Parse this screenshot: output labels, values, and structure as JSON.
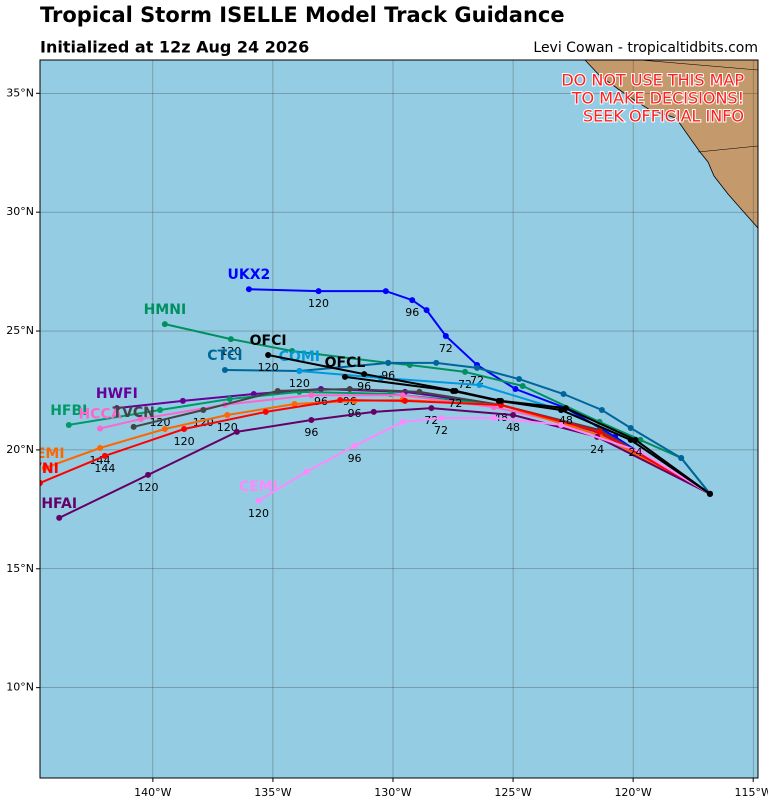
{
  "chart_data": {
    "type": "track-map",
    "title": "Tropical Storm ISELLE Model Track Guidance",
    "subtitle": "Initialized at 12z Aug 24 2026",
    "credit": "Levi Cowan - tropicaltidbits.com",
    "warning": [
      "DO NOT USE THIS MAP",
      "TO MAKE DECISIONS!",
      "SEEK OFFICIAL INFO"
    ],
    "xlim": [
      -144.7,
      -114.8
    ],
    "ylim": [
      6.2,
      36.4
    ],
    "xticks": [
      {
        "value": -140,
        "label": "140°W"
      },
      {
        "value": -135,
        "label": "135°W"
      },
      {
        "value": -130,
        "label": "130°W"
      },
      {
        "value": -125,
        "label": "125°W"
      },
      {
        "value": -120,
        "label": "120°W"
      },
      {
        "value": -115,
        "label": "115°W"
      }
    ],
    "yticks": [
      {
        "value": 10,
        "label": "10°N"
      },
      {
        "value": 15,
        "label": "15°N"
      },
      {
        "value": 20,
        "label": "20°N"
      },
      {
        "value": 25,
        "label": "25°N"
      },
      {
        "value": 30,
        "label": "30°N"
      },
      {
        "value": 35,
        "label": "35°N"
      }
    ],
    "grid": true,
    "ocean_color": "#94cde3",
    "land_color": "#c49a6c",
    "series": [
      {
        "name": "UKX2",
        "color": "#0000ff",
        "lon": [
          -116.8,
          -118.9,
          -120.75,
          -122.8,
          -124.9,
          -126.5,
          -127.8,
          -128.6,
          -129.2,
          -130.3,
          -133.1,
          -136.0
        ],
        "lat": [
          18.15,
          19.33,
          20.55,
          21.76,
          22.56,
          23.57,
          24.79,
          25.88,
          26.3,
          26.68,
          26.68,
          26.76
        ],
        "hour_labels": [
          null,
          null,
          null,
          null,
          null,
          null,
          72,
          null,
          96,
          null,
          120,
          null
        ]
      },
      {
        "name": "HMNI",
        "color": "#009060",
        "lon": [
          -116.8,
          -118.0,
          -119.7,
          -121.4,
          -124.6,
          -127.0,
          -129.3,
          -130.2,
          -134.2,
          -136.75,
          -139.5
        ],
        "lat": [
          18.15,
          19.66,
          20.42,
          21.18,
          22.69,
          23.28,
          23.57,
          23.66,
          24.16,
          24.66,
          25.29
        ],
        "hour_labels": [
          null,
          null,
          null,
          null,
          null,
          72,
          null,
          null,
          null,
          120,
          null
        ]
      },
      {
        "name": "CTCI",
        "color": "#006699",
        "lon": [
          -116.8,
          -118.0,
          -120.1,
          -121.3,
          -122.9,
          -124.75,
          -126.5,
          -128.2,
          -130.2,
          -133.9,
          -137.0
        ],
        "lat": [
          18.15,
          19.66,
          20.92,
          21.68,
          22.35,
          22.98,
          23.45,
          23.66,
          23.66,
          23.32,
          23.36
        ],
        "hour_labels": [
          null,
          null,
          null,
          null,
          null,
          null,
          72,
          null,
          96,
          120,
          null
        ]
      },
      {
        "name": "COMI",
        "color": "#0099dd",
        "lon": [
          -116.8,
          -120.1,
          -123.0,
          -126.4,
          -130.5,
          -133.9
        ],
        "lat": [
          18.15,
          20.42,
          21.68,
          22.73,
          23.03,
          23.32
        ],
        "hour_labels": [
          null,
          null,
          null,
          null,
          null,
          null
        ]
      },
      {
        "name": "HWFI",
        "color": "#660099",
        "lon": [
          -116.8,
          -121.5,
          -125.5,
          -129.5,
          -133.0,
          -135.8,
          -138.75,
          -141.5
        ],
        "lat": [
          18.15,
          20.76,
          21.89,
          22.44,
          22.56,
          22.35,
          22.06,
          21.76
        ],
        "hour_labels": [
          null,
          null,
          null,
          null,
          96,
          null,
          null,
          null
        ]
      },
      {
        "name": "HFBI",
        "color": "#009966",
        "lon": [
          -116.8,
          -121.4,
          -125.5,
          -130.1,
          -133.9,
          -136.8,
          -139.7,
          -143.5
        ],
        "lat": [
          18.15,
          20.63,
          21.89,
          22.35,
          22.44,
          22.14,
          21.68,
          21.05
        ],
        "hour_labels": [
          null,
          null,
          null,
          null,
          null,
          null,
          120,
          null
        ]
      },
      {
        "name": "HCCA",
        "color": "#ff66cc",
        "lon": [
          -116.8,
          -121.4,
          -125.8,
          -129.6,
          -133.4,
          -137.0,
          -140.5,
          -142.2
        ],
        "lat": [
          18.15,
          20.8,
          21.8,
          22.3,
          22.3,
          21.9,
          21.3,
          20.9
        ],
        "hour_labels": [
          null,
          null,
          null,
          null,
          null,
          null,
          null,
          null
        ]
      },
      {
        "name": "TVCN",
        "color": "#444444",
        "lon": [
          -116.8,
          -121.4,
          -125.5,
          -128.9,
          -131.8,
          -134.8,
          -137.9,
          -140.8
        ],
        "lat": [
          18.15,
          20.84,
          21.89,
          22.44,
          22.56,
          22.48,
          21.68,
          20.97
        ],
        "hour_labels": [
          null,
          null,
          48,
          null,
          96,
          null,
          120,
          null
        ]
      },
      {
        "name": "AEMI",
        "color": "#ff6600",
        "lon": [
          -116.8,
          -121.4,
          -125.5,
          -129.6,
          -131.6,
          -134.1,
          -136.9,
          -139.5,
          -142.2,
          -144.5
        ],
        "lat": [
          18.15,
          20.63,
          21.89,
          22.1,
          22.06,
          21.93,
          21.47,
          20.88,
          20.08,
          19.24
        ],
        "hour_labels": [
          null,
          null,
          null,
          null,
          96,
          null,
          120,
          null,
          144,
          null
        ]
      },
      {
        "name": "AVNI",
        "color": "#ff0000",
        "lon": [
          -116.8,
          -121.4,
          -125.5,
          -129.5,
          -132.2,
          -135.3,
          -138.7,
          -142.0,
          -144.7
        ],
        "lat": [
          18.15,
          20.76,
          21.89,
          22.06,
          22.1,
          21.6,
          20.88,
          19.75,
          18.61
        ],
        "hour_labels": [
          null,
          null,
          null,
          null,
          null,
          null,
          120,
          144,
          null
        ]
      },
      {
        "name": "HFAI",
        "color": "#660066",
        "lon": [
          -116.8,
          -121.5,
          -125.0,
          -128.4,
          -130.8,
          -133.4,
          -136.5,
          -140.2,
          -143.9
        ],
        "lat": [
          18.15,
          20.55,
          21.47,
          21.76,
          21.6,
          21.26,
          20.76,
          18.95,
          17.14
        ],
        "hour_labels": [
          null,
          24,
          48,
          72,
          null,
          96,
          null,
          120,
          null
        ]
      },
      {
        "name": "CEMI",
        "color": "#ff88ff",
        "lon": [
          -116.8,
          -119.7,
          -123.0,
          -125.8,
          -128.0,
          -129.6,
          -131.6,
          -133.6,
          -135.6
        ],
        "lat": [
          18.15,
          19.92,
          21.05,
          21.34,
          21.34,
          21.18,
          20.17,
          19.08,
          17.86
        ],
        "hour_labels": [
          null,
          null,
          null,
          null,
          72,
          null,
          96,
          null,
          120
        ]
      },
      {
        "name": "OFCL",
        "color": "#000000",
        "lon": [
          -116.8,
          -120.1,
          -123.0,
          -125.6,
          -127.5,
          -132.0
        ],
        "lat": [
          18.15,
          20.42,
          21.68,
          22.06,
          22.48,
          23.07
        ],
        "hour_labels": [
          null,
          null,
          null,
          null,
          null,
          null
        ]
      },
      {
        "name": "OFCI",
        "color": "#000000",
        "lon": [
          -116.8,
          -119.9,
          -122.8,
          -125.5,
          -127.4,
          -131.2,
          -135.2
        ],
        "lat": [
          18.15,
          20.42,
          21.76,
          22.06,
          22.48,
          23.19,
          23.99
        ],
        "hour_labels": [
          null,
          24,
          48,
          null,
          72,
          96,
          120
        ]
      }
    ]
  }
}
